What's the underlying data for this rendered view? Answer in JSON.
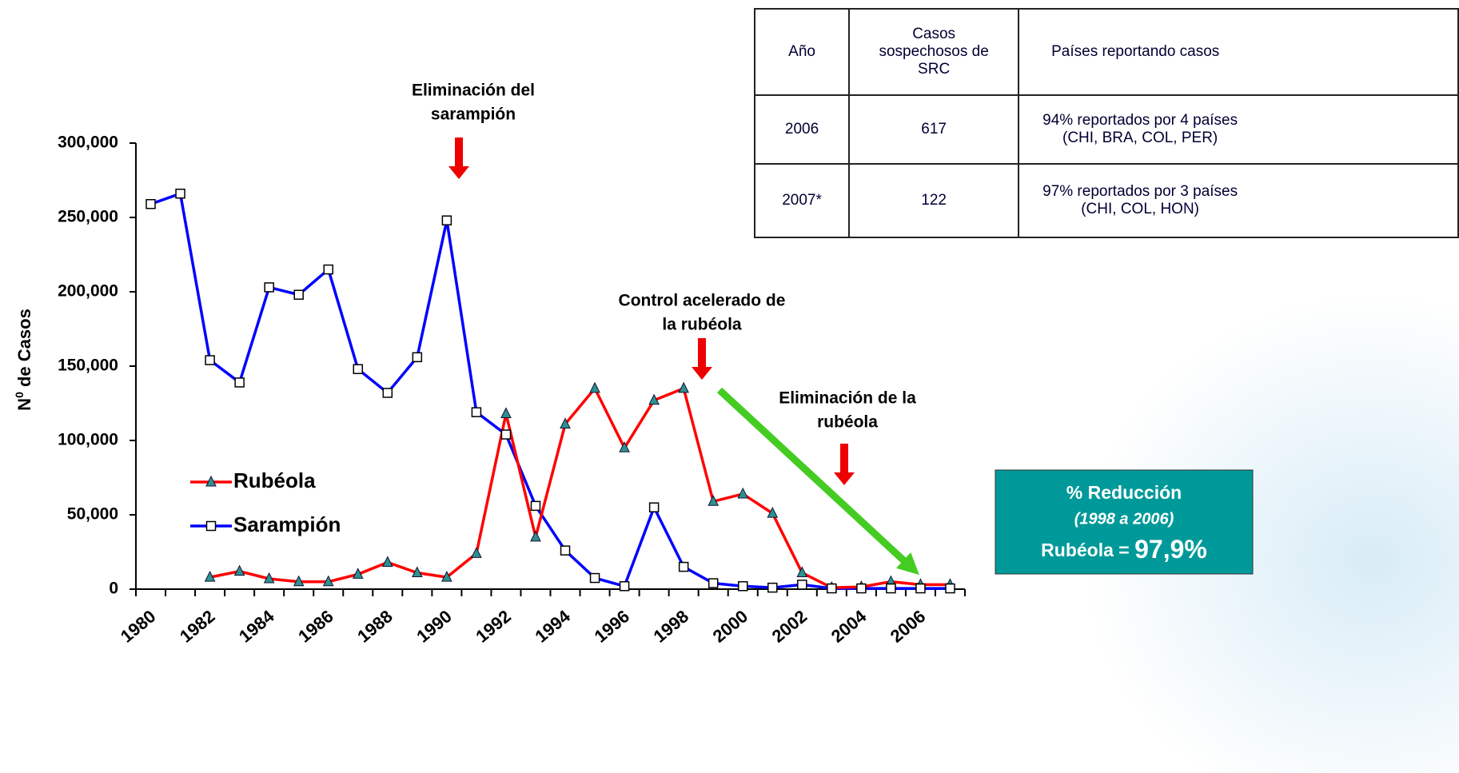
{
  "chart_data": {
    "type": "line",
    "y_label": "N",
    "y_label_sup": "0",
    "y_label_rest": " de Casos",
    "categories": [
      "1980",
      null,
      "1982",
      null,
      "1984",
      null,
      "1986",
      null,
      "1988",
      null,
      "1990",
      null,
      "1992",
      null,
      "1994",
      null,
      "1996",
      null,
      "1998",
      null,
      "2000",
      null,
      "2002",
      null,
      "2004",
      null,
      "2006",
      null
    ],
    "series": [
      {
        "name": "Rubéola",
        "color": "#ff0000",
        "marker_color": "#2e9090",
        "marker": "triangle",
        "values": [
          null,
          null,
          8000,
          12000,
          7000,
          5000,
          5000,
          10000,
          18000,
          11000,
          8000,
          24000,
          118000,
          35000,
          111000,
          135000,
          95000,
          127000,
          135000,
          59000,
          64000,
          51000,
          11000,
          1000,
          1500,
          5000,
          3000,
          3000
        ]
      },
      {
        "name": "Sarampión",
        "color": "#0000ff",
        "marker_color": "#ffffff",
        "marker": "square",
        "values": [
          259000,
          266000,
          154000,
          139000,
          203000,
          198000,
          215000,
          148000,
          132000,
          156000,
          248000,
          119000,
          104000,
          56000,
          26000,
          7500,
          2000,
          55000,
          15000,
          4000,
          2000,
          1000,
          3000,
          500,
          500,
          500,
          500,
          500
        ]
      }
    ],
    "ylim": [
      0,
      300000
    ],
    "yticks": [
      0,
      {
        "value": 50000,
        "label": "50,000"
      },
      {
        "value": 100000,
        "label": "100,000"
      },
      {
        "value": 150000,
        "label": "150,000"
      },
      {
        "value": 200000,
        "label": "200,000"
      },
      {
        "value": 250000,
        "label": "250,000"
      },
      {
        "value": 300000,
        "label": "300,000"
      }
    ],
    "annotations": [
      {
        "lines": [
          "Eliminación del",
          "sarampión"
        ]
      },
      {
        "lines": [
          "Control acelerado de",
          "la rubéola"
        ]
      },
      {
        "lines": [
          "Eliminación de la",
          "rubéola"
        ]
      }
    ],
    "box": {
      "title": "% Reducción",
      "period": "(1998  a 2006)",
      "prefix": "Rubéola = ",
      "value": "97,9%"
    }
  },
  "table": {
    "header": [
      "Año",
      "Casos sospechosos de SRC",
      "Países reportando casos"
    ],
    "rows": [
      [
        "2006",
        "617",
        "94% reportados por 4 países (CHI, BRA, COL, PER)"
      ],
      [
        "2007*",
        "122",
        "97% reportados por 3 países (CHI, COL, HON)"
      ]
    ]
  }
}
